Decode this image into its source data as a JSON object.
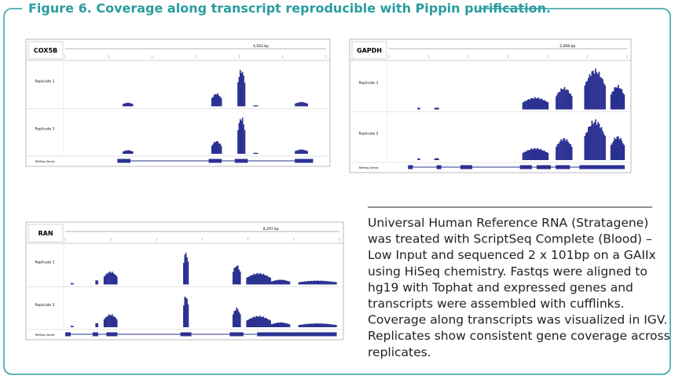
{
  "figure": {
    "title": "Figure 6. Coverage along transcript reproducible with Pippin purification."
  },
  "panels": [
    {
      "gene": "COX5B",
      "scale": "4,563 bp",
      "tracks": [
        "Replicate 1",
        "Replicate 2"
      ],
      "annotation": "RefSeq Genes"
    },
    {
      "gene": "GAPDH",
      "scale": "2,008 bp",
      "tracks": [
        "Replicate 1",
        "Replicate 2"
      ],
      "annotation": "RefSeq Genes"
    },
    {
      "gene": "RAN",
      "scale": "8,297 bp",
      "tracks": [
        "Replicate 1",
        "Replicate 2"
      ],
      "annotation": "RefSeq Genes"
    }
  ],
  "caption": {
    "lines": [
      "Universal Human Reference RNA (Stratagene)",
      "was treated with ScriptSeq Complete (Blood) –",
      "Low Input and sequenced 2 x 101bp on a GAIIx",
      "using HiSeq chemistry. Fastqs were aligned to",
      "hg19 with Tophat and expressed genes and",
      "transcripts were assembled with cufflinks.",
      "Coverage along transcripts was visualized in IGV.",
      "Replicates show consistent gene coverage across",
      "replicates."
    ]
  }
}
